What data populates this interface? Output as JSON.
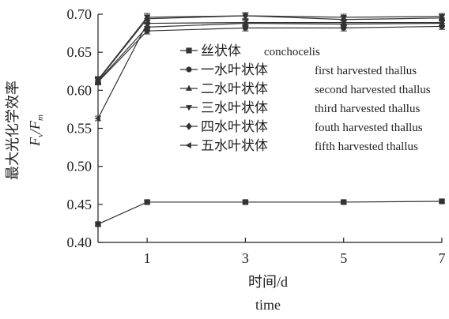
{
  "chart_data": {
    "type": "line",
    "xlabel_cn": "时间/d",
    "xlabel_en": "time",
    "ylabel_cn": "最大光化学效率",
    "ylabel_sym": {
      "F": "F",
      "v": "v",
      "slash": "/",
      "m": "m"
    },
    "x": [
      0,
      1,
      3,
      5,
      7
    ],
    "x_ticks": [
      "1",
      "3",
      "5",
      "7"
    ],
    "y_ticks": [
      "0.40",
      "0.45",
      "0.50",
      "0.55",
      "0.60",
      "0.65",
      "0.70"
    ],
    "xlim": [
      0,
      7
    ],
    "ylim": [
      0.4,
      0.7
    ],
    "legend_position": "center",
    "series": [
      {
        "name_cn": "丝状体",
        "name_en": "conchocelis",
        "marker": "square",
        "values": [
          0.424,
          0.453,
          0.453,
          0.453,
          0.454
        ],
        "errors": [
          0.002,
          0.002,
          0.002,
          0.002,
          0.002
        ]
      },
      {
        "name_cn": "一水叶状体",
        "name_en": "first harvested thallus",
        "marker": "circle",
        "values": [
          0.611,
          0.678,
          0.682,
          0.682,
          0.684
        ],
        "errors": [
          0.004,
          0.004,
          0.004,
          0.004,
          0.004
        ]
      },
      {
        "name_cn": "二水叶状体",
        "name_en": "second harvested thallus",
        "marker": "triangle-up",
        "values": [
          0.612,
          0.683,
          0.688,
          0.687,
          0.688
        ],
        "errors": [
          0.004,
          0.004,
          0.004,
          0.004,
          0.004
        ]
      },
      {
        "name_cn": "三水叶状体",
        "name_en": "third harvested thallus",
        "marker": "triangle-down",
        "values": [
          0.614,
          0.696,
          0.698,
          0.696,
          0.697
        ],
        "errors": [
          0.004,
          0.005,
          0.004,
          0.004,
          0.004
        ]
      },
      {
        "name_cn": "四水叶状体",
        "name_en": "fouth harvested thallus",
        "marker": "diamond",
        "values": [
          0.613,
          0.694,
          0.698,
          0.693,
          0.695
        ],
        "errors": [
          0.004,
          0.005,
          0.004,
          0.004,
          0.004
        ]
      },
      {
        "name_cn": "五水叶状体",
        "name_en": "fifth harvested thallus",
        "marker": "triangle-left",
        "values": [
          0.563,
          0.688,
          0.689,
          0.689,
          0.689
        ],
        "errors": [
          0.003,
          0.004,
          0.004,
          0.004,
          0.004
        ]
      }
    ]
  },
  "colors": {
    "line": "#333333",
    "marker": "#333333",
    "background": "#ffffff"
  }
}
